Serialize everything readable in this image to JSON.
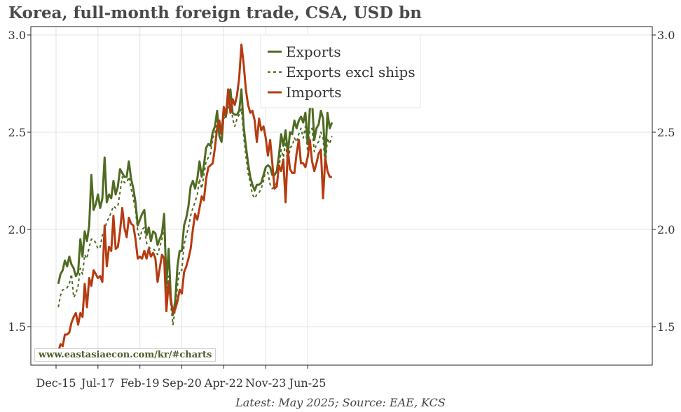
{
  "chart_data": {
    "type": "line",
    "title": "Korea, full-month foreign trade, CSA, USD bn",
    "source": "Latest: May 2025; Source: EAE, KCS",
    "watermark": "www.eastasiaecon.com/kr/#charts",
    "x_ticks": [
      {
        "label": "Dec-15",
        "date": "2015-12"
      },
      {
        "label": "Jul-17",
        "date": "2017-07"
      },
      {
        "label": "Feb-19",
        "date": "2019-02"
      },
      {
        "label": "Sep-20",
        "date": "2020-09"
      },
      {
        "label": "Apr-22",
        "date": "2022-04"
      },
      {
        "label": "Nov-23",
        "date": "2023-11"
      },
      {
        "label": "Jun-25",
        "date": "2025-06"
      }
    ],
    "x_start": "2016-01",
    "y_ticks": [
      "1.5",
      "2.0",
      "2.5",
      "3.0"
    ],
    "ylim": [
      1.3,
      3.05
    ],
    "grid": true,
    "legend_position": "top-center",
    "colors": {
      "exports": "#4f6b22",
      "exports_excl": "#4f6b22",
      "imports": "#b53b10"
    },
    "series": [
      {
        "name": "Exports",
        "style": "solid",
        "values": [
          1.72,
          1.77,
          1.79,
          1.84,
          1.81,
          1.86,
          1.82,
          1.8,
          1.76,
          1.78,
          1.95,
          1.86,
          1.99,
          1.94,
          2.02,
          2.28,
          2.1,
          2.13,
          2.18,
          2.11,
          2.16,
          2.37,
          2.14,
          2.18,
          2.16,
          2.25,
          2.18,
          2.22,
          2.31,
          2.29,
          2.27,
          2.27,
          2.35,
          2.26,
          2.21,
          2.14,
          2.02,
          2.05,
          2.08,
          2.1,
          1.97,
          2.01,
          1.94,
          1.99,
          1.98,
          1.92,
          1.95,
          1.98,
          2.08,
          1.72,
          1.9,
          1.65,
          1.56,
          1.63,
          1.81,
          1.89,
          1.89,
          2.02,
          2.06,
          2.12,
          2.22,
          2.25,
          2.21,
          2.26,
          2.35,
          2.27,
          2.33,
          2.42,
          2.44,
          2.43,
          2.5,
          2.53,
          2.61,
          2.48,
          2.45,
          2.61,
          2.58,
          2.67,
          2.72,
          2.6,
          2.59,
          2.59,
          2.61,
          2.72,
          2.53,
          2.43,
          2.34,
          2.27,
          2.23,
          2.2,
          2.23,
          2.23,
          2.24,
          2.28,
          2.32,
          2.33,
          2.32,
          2.28,
          2.28,
          2.3,
          2.38,
          2.49,
          2.43,
          2.51,
          2.39,
          2.5,
          2.49,
          2.56,
          2.52,
          2.56,
          2.58,
          2.55,
          2.6,
          2.44,
          2.62,
          2.66,
          2.46,
          2.52,
          2.54,
          2.61,
          2.57,
          2.37,
          2.6,
          2.52,
          2.55
        ]
      },
      {
        "name": "Exports excl ships",
        "style": "dashed",
        "values": [
          1.6,
          1.66,
          1.69,
          1.69,
          1.7,
          1.72,
          1.77,
          1.65,
          1.67,
          1.71,
          1.8,
          1.77,
          1.87,
          1.85,
          1.91,
          1.95,
          1.95,
          1.93,
          1.9,
          1.91,
          1.97,
          2.0,
          2.04,
          2.06,
          2.09,
          2.12,
          2.11,
          2.12,
          2.19,
          2.27,
          2.24,
          2.24,
          2.27,
          2.21,
          2.16,
          2.1,
          1.99,
          1.95,
          2.0,
          2.01,
          1.93,
          1.91,
          1.9,
          1.9,
          1.89,
          1.87,
          1.91,
          1.95,
          2.02,
          1.68,
          1.76,
          1.61,
          1.51,
          1.59,
          1.71,
          1.79,
          1.79,
          1.92,
          1.97,
          2.01,
          2.07,
          2.11,
          2.14,
          2.18,
          2.26,
          2.21,
          2.28,
          2.35,
          2.37,
          2.39,
          2.47,
          2.49,
          2.57,
          2.51,
          2.45,
          2.57,
          2.58,
          2.63,
          2.69,
          2.57,
          2.53,
          2.57,
          2.59,
          2.62,
          2.48,
          2.38,
          2.29,
          2.24,
          2.18,
          2.16,
          2.18,
          2.19,
          2.21,
          2.25,
          2.31,
          2.29,
          2.23,
          2.21,
          2.22,
          2.24,
          2.31,
          2.41,
          2.37,
          2.45,
          2.33,
          2.42,
          2.43,
          2.47,
          2.45,
          2.49,
          2.52,
          2.47,
          2.53,
          2.4,
          2.51,
          2.52,
          2.4,
          2.44,
          2.45,
          2.5,
          2.47,
          2.32,
          2.47,
          2.44,
          2.48
        ]
      },
      {
        "name": "Imports",
        "style": "solid",
        "values": [
          1.37,
          1.41,
          1.4,
          1.46,
          1.46,
          1.47,
          1.52,
          1.55,
          1.57,
          1.51,
          1.57,
          1.55,
          1.72,
          1.6,
          1.75,
          1.71,
          1.79,
          1.77,
          1.75,
          1.76,
          1.73,
          2.02,
          1.81,
          1.91,
          1.89,
          2.07,
          1.9,
          1.91,
          1.99,
          2.11,
          2.01,
          1.96,
          2.06,
          2.03,
          2.02,
          1.95,
          1.85,
          1.86,
          1.85,
          1.89,
          1.85,
          1.9,
          1.86,
          1.88,
          1.85,
          1.73,
          1.8,
          1.87,
          1.85,
          1.58,
          1.73,
          1.63,
          1.57,
          1.59,
          1.63,
          1.69,
          1.67,
          1.78,
          1.81,
          1.85,
          1.9,
          2.0,
          2.08,
          2.05,
          2.11,
          2.17,
          2.15,
          2.26,
          2.32,
          2.33,
          2.34,
          2.42,
          2.52,
          2.56,
          2.49,
          2.63,
          2.59,
          2.72,
          2.6,
          2.67,
          2.64,
          2.69,
          2.78,
          2.95,
          2.85,
          2.72,
          2.64,
          2.6,
          2.61,
          2.56,
          2.45,
          2.57,
          2.51,
          2.53,
          2.47,
          2.38,
          2.46,
          2.34,
          2.21,
          2.22,
          2.33,
          2.3,
          2.36,
          2.14,
          2.41,
          2.31,
          2.29,
          2.29,
          2.39,
          2.46,
          2.34,
          2.34,
          2.32,
          2.37,
          2.46,
          2.35,
          2.3,
          2.34,
          2.39,
          2.41,
          2.16,
          2.37,
          2.3,
          2.27,
          2.27
        ]
      }
    ]
  }
}
